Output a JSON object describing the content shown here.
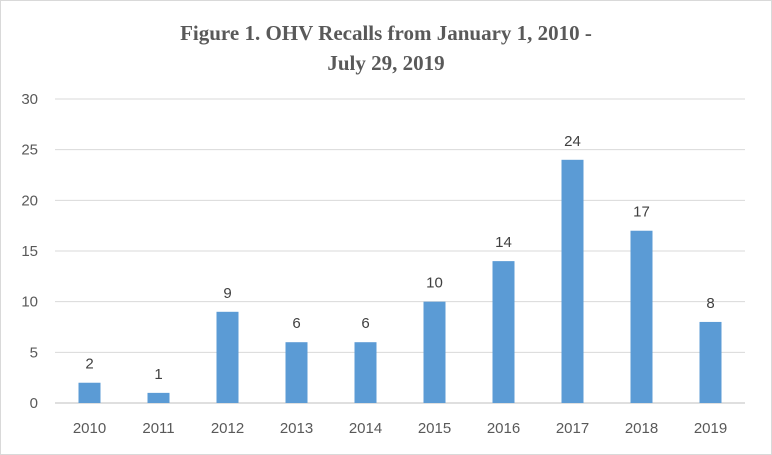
{
  "chart_data": {
    "type": "bar",
    "title_line1": "Figure 1. OHV Recalls from January 1, 2010 -",
    "title_line2": "July 29, 2019",
    "xlabel": "",
    "ylabel": "",
    "categories": [
      "2010",
      "2011",
      "2012",
      "2013",
      "2014",
      "2015",
      "2016",
      "2017",
      "2018",
      "2019"
    ],
    "values": [
      2,
      1,
      9,
      6,
      6,
      10,
      14,
      24,
      17,
      8
    ],
    "ylim": [
      0,
      30
    ],
    "yticks": [
      0,
      5,
      10,
      15,
      20,
      25,
      30
    ],
    "grid": true,
    "data_labels": true,
    "bar_color": "#5b9bd5",
    "grid_color": "#d9d9d9",
    "axis_color": "#bfbfbf"
  }
}
